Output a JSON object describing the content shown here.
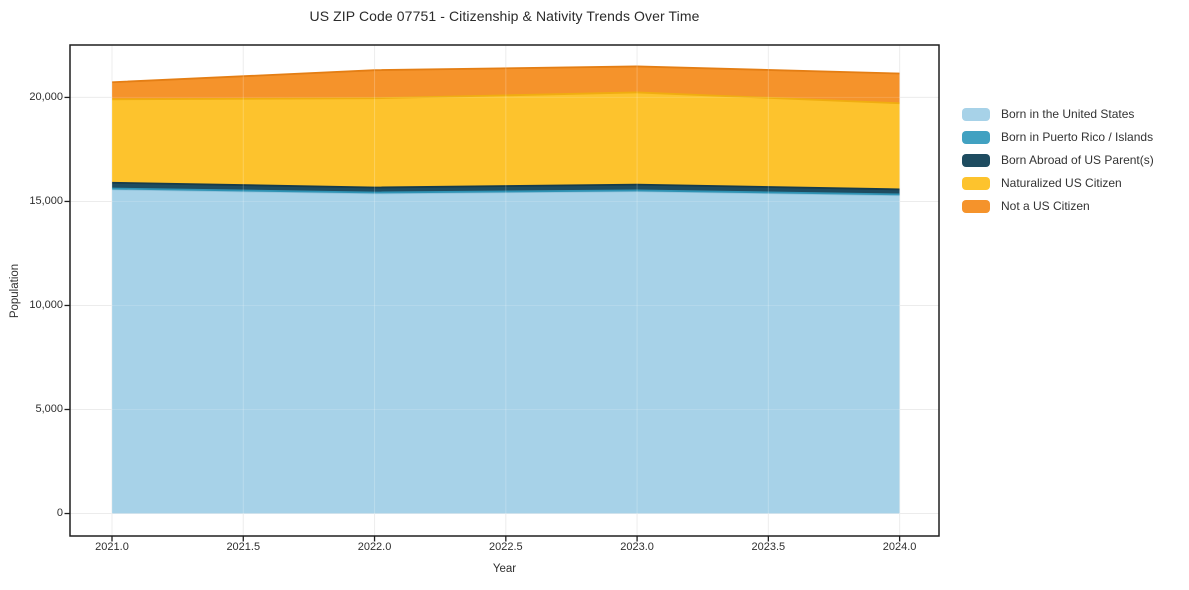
{
  "title": "US ZIP Code 07751 - Citizenship & Nativity Trends Over Time",
  "axes": {
    "x": {
      "label": "Year",
      "ticks": [
        "2021.0",
        "2021.5",
        "2022.0",
        "2022.5",
        "2023.0",
        "2023.5",
        "2024.0"
      ],
      "tick_values": [
        2021,
        2021.5,
        2022,
        2022.5,
        2023,
        2023.5,
        2024
      ]
    },
    "y": {
      "label": "Population",
      "ticks": [
        "0",
        "5,000",
        "10,000",
        "15,000",
        "20,000"
      ],
      "tick_values": [
        0,
        5000,
        10000,
        15000,
        20000
      ]
    }
  },
  "colors": {
    "grid": "#e9e9e9",
    "axis_line": "#1f1f1f",
    "text": "#2e2e2e"
  },
  "chart_data": {
    "type": "area",
    "stacked": true,
    "title": "US ZIP Code 07751 - Citizenship & Nativity Trends Over Time",
    "xlabel": "Year",
    "ylabel": "Population",
    "x": [
      2021,
      2022,
      2023,
      2024
    ],
    "series": [
      {
        "name": "Born in the United States",
        "color": "#a7d2e8",
        "line_color": "#8cc0da",
        "values": [
          15580,
          15390,
          15490,
          15300
        ]
      },
      {
        "name": "Born in Puerto Rico / Islands",
        "color": "#41a1c1",
        "line_color": "#2f93b4",
        "values": [
          40,
          40,
          40,
          40
        ]
      },
      {
        "name": "Born Abroad of US Parent(s)",
        "color": "#1e4c60",
        "line_color": "#163b4b",
        "values": [
          280,
          240,
          280,
          240
        ]
      },
      {
        "name": "Naturalized US Citizen",
        "color": "#fdc32d",
        "line_color": "#f0ad10",
        "values": [
          4010,
          4290,
          4430,
          4140
        ]
      },
      {
        "name": "Not a US Citizen",
        "color": "#f5932b",
        "line_color": "#e47e14",
        "values": [
          820,
          1350,
          1250,
          1430
        ]
      }
    ],
    "xlim": [
      2020.84,
      2024.15
    ],
    "ylim": [
      -1080,
      22520
    ],
    "grid": true,
    "legend_position": "right"
  }
}
